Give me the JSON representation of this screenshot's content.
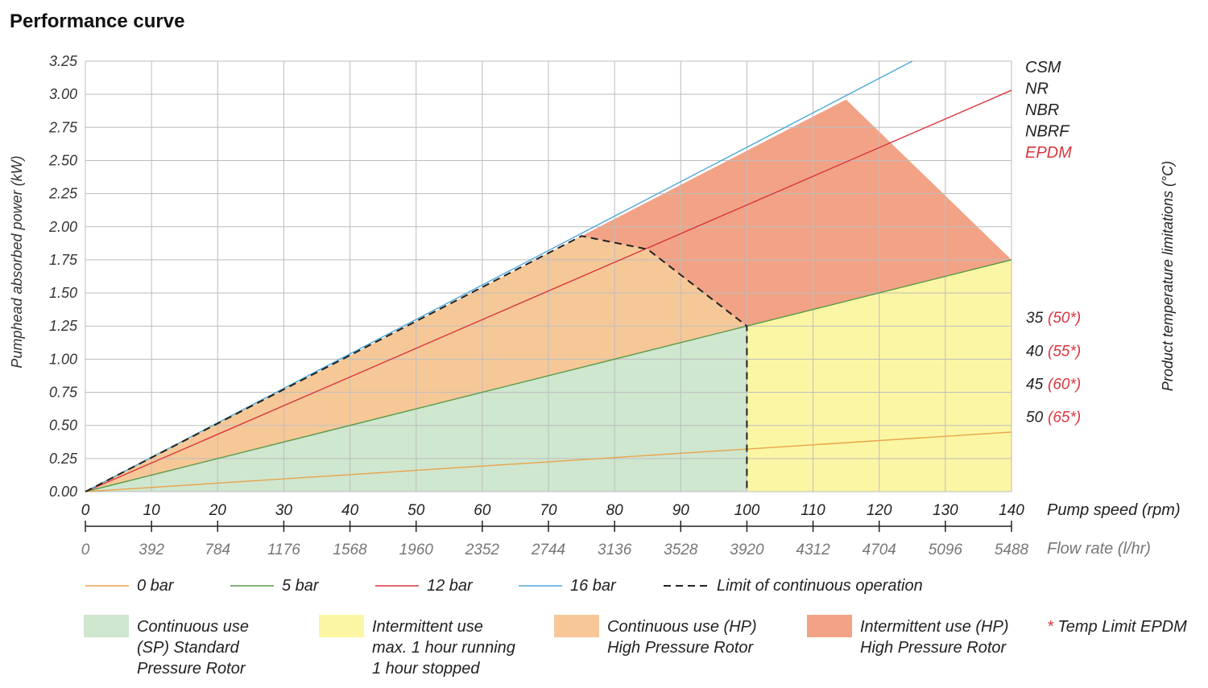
{
  "chart_data": {
    "type": "line",
    "title": "Performance curve",
    "ylabel": "Pumphead absorbed power (kW)",
    "right_label": "Product temperature limitations (°C)",
    "ylim": [
      0,
      3.25
    ],
    "yticks": [
      "0.00",
      "0.25",
      "0.50",
      "0.75",
      "1.00",
      "1.25",
      "1.50",
      "1.75",
      "2.00",
      "2.25",
      "2.50",
      "2.75",
      "3.00",
      "3.25"
    ],
    "xlim": [
      0,
      140
    ],
    "xticks": [
      "0",
      "10",
      "20",
      "30",
      "40",
      "50",
      "60",
      "70",
      "80",
      "90",
      "100",
      "110",
      "120",
      "130",
      "140"
    ],
    "xlabel": "Pump speed (rpm)",
    "x2ticks": [
      "0",
      "392",
      "784",
      "1176",
      "1568",
      "1960",
      "2352",
      "2744",
      "3136",
      "3528",
      "3920",
      "4312",
      "4704",
      "5096",
      "5488"
    ],
    "x2label": "Flow rate (l/hr)",
    "colors": {
      "line_0bar": "#e8a44a",
      "line_5bar": "#5a9a4a",
      "line_12bar": "#d9363e",
      "line_16bar": "#4fa8d8",
      "limit": "#222222",
      "fill_continuous_sp": "#cfe6cf",
      "fill_intermittent": "#fbf6a3",
      "fill_continuous_hp": "#f6c898",
      "fill_intermittent_hp": "#f2a386",
      "epdm": "#d9363e",
      "grid": "#bdbdbd"
    },
    "series": [
      {
        "name": "0 bar",
        "x": [
          0,
          140
        ],
        "y": [
          0,
          0.45
        ]
      },
      {
        "name": "5 bar",
        "x": [
          0,
          100,
          140
        ],
        "y": [
          0,
          1.25,
          1.75
        ]
      },
      {
        "name": "12 bar",
        "x": [
          0,
          140
        ],
        "y": [
          0,
          3.03
        ]
      },
      {
        "name": "16 bar",
        "x": [
          0,
          125
        ],
        "y": [
          0,
          3.25
        ]
      },
      {
        "name": "Limit of continuous operation",
        "x": [
          0,
          75,
          85,
          100,
          100
        ],
        "y": [
          0,
          1.93,
          1.83,
          1.25,
          0
        ]
      }
    ],
    "regions": [
      {
        "name": "continuous_sp",
        "points": [
          [
            0,
            0
          ],
          [
            100,
            1.25
          ],
          [
            100,
            0
          ]
        ]
      },
      {
        "name": "intermittent",
        "points": [
          [
            100,
            0
          ],
          [
            100,
            1.25
          ],
          [
            140,
            1.75
          ],
          [
            140,
            0
          ]
        ]
      },
      {
        "name": "continuous_hp",
        "points": [
          [
            0,
            0
          ],
          [
            75,
            1.93
          ],
          [
            85,
            1.83
          ],
          [
            100,
            1.25
          ]
        ]
      },
      {
        "name": "intermittent_hp",
        "points": [
          [
            75,
            1.93
          ],
          [
            115,
            2.96
          ],
          [
            140,
            1.75
          ],
          [
            100,
            1.25
          ],
          [
            85,
            1.83
          ]
        ]
      }
    ],
    "materials": [
      {
        "label": "CSM",
        "color": "#222222"
      },
      {
        "label": "NR",
        "color": "#222222"
      },
      {
        "label": "NBR",
        "color": "#222222"
      },
      {
        "label": "NBRF",
        "color": "#222222"
      },
      {
        "label": "EPDM",
        "color": "#d9363e"
      }
    ],
    "temps": [
      {
        "y": 1.25,
        "value": "35",
        "epdm": "(50*)"
      },
      {
        "y": 1.0,
        "value": "40",
        "epdm": "(55*)"
      },
      {
        "y": 0.75,
        "value": "45",
        "epdm": "(60*)"
      },
      {
        "y": 0.5,
        "value": "50",
        "epdm": "(65*)"
      }
    ],
    "legend_lines": [
      {
        "label": "0 bar",
        "color": "#e8a44a",
        "dash": false
      },
      {
        "label": "5 bar",
        "color": "#5a9a4a",
        "dash": false
      },
      {
        "label": "12 bar",
        "color": "#d9363e",
        "dash": false
      },
      {
        "label": "16 bar",
        "color": "#4fa8d8",
        "dash": false
      },
      {
        "label": "Limit of continuous operation",
        "color": "#222222",
        "dash": true
      }
    ],
    "legend_areas": [
      {
        "lines": [
          "Continuous use",
          "(SP) Standard",
          "Pressure Rotor"
        ],
        "color": "#cfe6cf"
      },
      {
        "lines": [
          "Intermittent use",
          "max. 1 hour running",
          "1 hour stopped"
        ],
        "color": "#fbf6a3"
      },
      {
        "lines": [
          "Continuous use (HP)",
          "High Pressure Rotor"
        ],
        "color": "#f6c898"
      },
      {
        "lines": [
          "Intermittent use (HP)",
          "High Pressure Rotor"
        ],
        "color": "#f2a386"
      }
    ],
    "footnote": {
      "star": "*",
      "text": " Temp Limit EPDM"
    }
  }
}
